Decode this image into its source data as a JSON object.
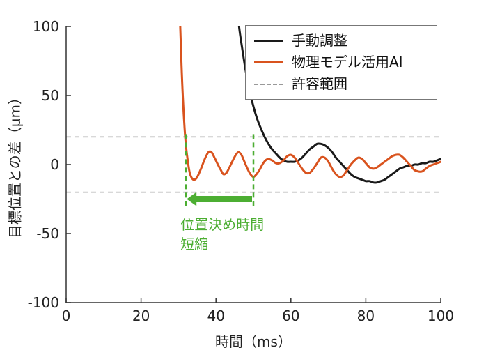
{
  "chart_data": {
    "type": "line",
    "title": "",
    "xlabel": "時間（ms）",
    "ylabel": "目標位置との差（μm）",
    "xlim": [
      0,
      100
    ],
    "ylim": [
      -100,
      100
    ],
    "xticks": [
      0,
      20,
      40,
      60,
      80,
      100
    ],
    "yticks": [
      -100,
      -50,
      0,
      50,
      100
    ],
    "grid": false,
    "legend_position": "top-right",
    "series": [
      {
        "name": "手動調整",
        "color": "#1a1a1a",
        "style": "solid",
        "width": 3,
        "points": [
          [
            45,
            140
          ],
          [
            46,
            104
          ],
          [
            47,
            84
          ],
          [
            48,
            67
          ],
          [
            49,
            53
          ],
          [
            50,
            42
          ],
          [
            51,
            33
          ],
          [
            52,
            26
          ],
          [
            53,
            20
          ],
          [
            54,
            15
          ],
          [
            55,
            11
          ],
          [
            56,
            8
          ],
          [
            57,
            5
          ],
          [
            58,
            3
          ],
          [
            59,
            2
          ],
          [
            60,
            2
          ],
          [
            61,
            2
          ],
          [
            62,
            3
          ],
          [
            63,
            5
          ],
          [
            64,
            8
          ],
          [
            65,
            11
          ],
          [
            66,
            13
          ],
          [
            67,
            15
          ],
          [
            68,
            15
          ],
          [
            69,
            14
          ],
          [
            70,
            12
          ],
          [
            71,
            9
          ],
          [
            72,
            5
          ],
          [
            73,
            2
          ],
          [
            74,
            -1
          ],
          [
            75,
            -4
          ],
          [
            76,
            -7
          ],
          [
            77,
            -9
          ],
          [
            78,
            -10
          ],
          [
            79,
            -11
          ],
          [
            80,
            -12
          ],
          [
            81,
            -12
          ],
          [
            82,
            -13
          ],
          [
            83,
            -13
          ],
          [
            84,
            -12
          ],
          [
            85,
            -11
          ],
          [
            86,
            -9
          ],
          [
            87,
            -7
          ],
          [
            88,
            -5
          ],
          [
            89,
            -3
          ],
          [
            90,
            -2
          ],
          [
            91,
            -1
          ],
          [
            92,
            -1
          ],
          [
            93,
            0
          ],
          [
            94,
            0
          ],
          [
            95,
            1
          ],
          [
            96,
            1
          ],
          [
            97,
            2
          ],
          [
            98,
            2
          ],
          [
            99,
            3
          ],
          [
            100,
            4
          ]
        ]
      },
      {
        "name": "物理モデル活用AI",
        "color": "#d9531e",
        "style": "solid",
        "width": 3,
        "points": [
          [
            30,
            140
          ],
          [
            30.4,
            104
          ],
          [
            30.8,
            72
          ],
          [
            31.2,
            46
          ],
          [
            31.6,
            27
          ],
          [
            32,
            13
          ],
          [
            32.5,
            2
          ],
          [
            33,
            -6
          ],
          [
            33.6,
            -10
          ],
          [
            34.2,
            -11
          ],
          [
            35,
            -9
          ],
          [
            36,
            -3
          ],
          [
            37,
            4
          ],
          [
            38,
            9
          ],
          [
            38.8,
            9
          ],
          [
            39.6,
            5
          ],
          [
            40.5,
            0
          ],
          [
            41.3,
            -4
          ],
          [
            42,
            -7
          ],
          [
            42.8,
            -6
          ],
          [
            43.6,
            -2
          ],
          [
            44.5,
            3
          ],
          [
            45.3,
            7
          ],
          [
            46,
            9
          ],
          [
            46.8,
            7
          ],
          [
            47.6,
            2
          ],
          [
            48.4,
            -3
          ],
          [
            49.2,
            -7
          ],
          [
            50,
            -9
          ],
          [
            50.8,
            -7
          ],
          [
            51.6,
            -4
          ],
          [
            52.4,
            0
          ],
          [
            53.2,
            3
          ],
          [
            54,
            4
          ],
          [
            55,
            3
          ],
          [
            56,
            1
          ],
          [
            57,
            1
          ],
          [
            58,
            3
          ],
          [
            59,
            6
          ],
          [
            60,
            7
          ],
          [
            61,
            5
          ],
          [
            62,
            1
          ],
          [
            63,
            -3
          ],
          [
            64,
            -6
          ],
          [
            65,
            -6
          ],
          [
            66,
            -3
          ],
          [
            67,
            1
          ],
          [
            68,
            5
          ],
          [
            69,
            5
          ],
          [
            70,
            2
          ],
          [
            71,
            -3
          ],
          [
            72,
            -7
          ],
          [
            73,
            -9
          ],
          [
            74,
            -8
          ],
          [
            75,
            -4
          ],
          [
            76,
            0
          ],
          [
            77,
            3
          ],
          [
            78,
            5
          ],
          [
            79,
            4
          ],
          [
            80,
            1
          ],
          [
            81,
            -2
          ],
          [
            82,
            -3
          ],
          [
            83,
            -2
          ],
          [
            84,
            0
          ],
          [
            85,
            2
          ],
          [
            86,
            4
          ],
          [
            87,
            6
          ],
          [
            88,
            7
          ],
          [
            89,
            7
          ],
          [
            90,
            5
          ],
          [
            91,
            2
          ],
          [
            92,
            -1
          ],
          [
            93,
            -4
          ],
          [
            94,
            -5
          ],
          [
            95,
            -5
          ],
          [
            96,
            -3
          ],
          [
            97,
            -1
          ],
          [
            98,
            0
          ],
          [
            99,
            1
          ],
          [
            100,
            2
          ]
        ]
      },
      {
        "name": "許容範囲",
        "color": "#999999",
        "style": "dashed",
        "width": 1.5,
        "hlines": [
          20,
          -20
        ]
      }
    ],
    "annotation": {
      "color": "#4cae32",
      "vline_x": [
        32,
        50
      ],
      "vline_y_top": 22,
      "vline_y_bottom": -32,
      "arrow_y": -25,
      "arrow_direction": "left",
      "label_line1": "位置決め時間",
      "label_line2": "短縮"
    }
  }
}
